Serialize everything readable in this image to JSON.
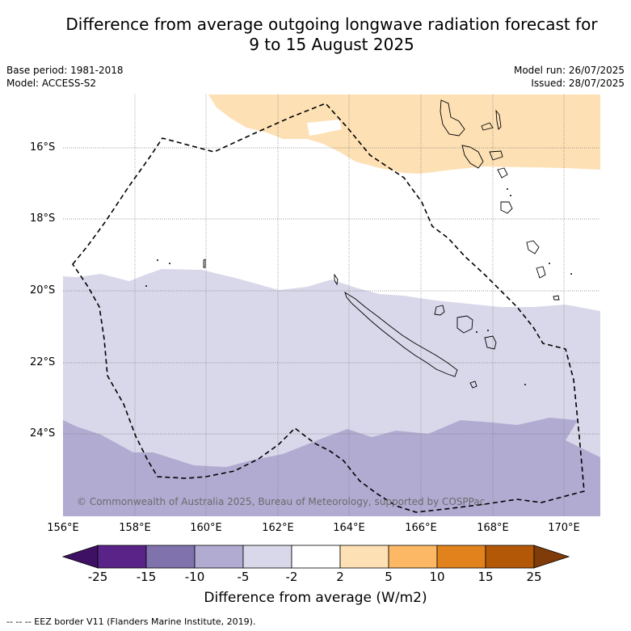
{
  "title_line1": "Difference from average outgoing longwave radiation forecast for",
  "title_line2": "9 to 15 August 2025",
  "meta_left": [
    "Base period: 1981-2018",
    "Model: ACCESS-S2"
  ],
  "meta_right": [
    "Model run: 26/07/2025",
    "Issued: 28/07/2025"
  ],
  "lat_labels": [
    "16°S",
    "18°S",
    "20°S",
    "22°S",
    "24°S"
  ],
  "lon_labels": [
    "156°E",
    "158°E",
    "160°E",
    "162°E",
    "164°E",
    "166°E",
    "168°E",
    "170°E"
  ],
  "copyright": "© Commonwealth of Australia 2025, Bureau of Meteorology, supported by COSPPac",
  "colorbar": {
    "ticks": [
      "-25",
      "-15",
      "-10",
      "-5",
      "-2",
      "2",
      "5",
      "10",
      "15",
      "25"
    ],
    "colors": [
      "#3f1164",
      "#5a2388",
      "#8072ad",
      "#b1abd2",
      "#d8d8ea",
      "#ffffff",
      "#fde0b4",
      "#fdb865",
      "#e1821c",
      "#b35806",
      "#7f3b08"
    ],
    "title": "Difference from average (W/m2)"
  },
  "footer": "--  --  -- EEZ border V11 (Flanders Marine Institute, 2019)."
}
